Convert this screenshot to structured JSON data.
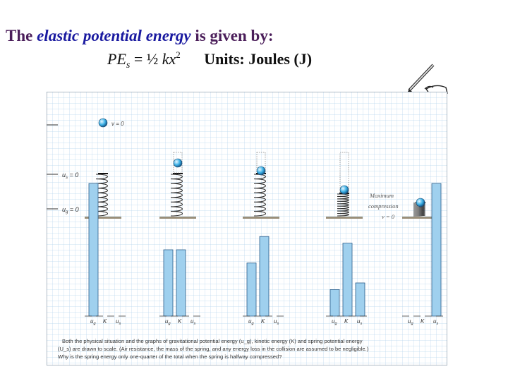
{
  "heading": {
    "prefix": "The ",
    "emphasis": "elastic potential energy",
    "suffix": " is given by:"
  },
  "formula": {
    "lhs": "PE",
    "lhs_sub": "s",
    "equals": " = ½ ",
    "rhs": "kx",
    "rhs_sup": "2",
    "units": "Units: Joules (J)"
  },
  "figure": {
    "label_v0": "v = 0",
    "label_us0": "u",
    "label_us0_sub": "s",
    "label_us0_eq": " = 0",
    "label_ug0": "u",
    "label_ug0_sub": "g",
    "label_ug0_eq": " = 0",
    "max_compression_1": "Maximum",
    "max_compression_2": "compression",
    "max_compression_3": "v = 0",
    "bar_labels": [
      "u",
      "K",
      "u"
    ],
    "bar_label_subs": [
      "g",
      "",
      "s"
    ],
    "caption_1": "Both the physical situation and the graphs of gravitational potential energy (u_g), kinetic energy (K) and spring potential energy",
    "caption_2": "(U_s) are drawn to scale. (Air resistance, the mass of the spring, and any energy loss in the collision are assumed to be negligible.)",
    "caption_3": "Why is the spring energy only one-quarter of the total when the spring is halfway compressed?"
  },
  "colors": {
    "bar_fill": "#9fd0ee",
    "bar_stroke": "#2b5d8a",
    "grid": "#a8cde8",
    "heading": "#4b1e5a",
    "emphasis": "#1a1aa0"
  },
  "icons": [
    "pencil-hand-icon"
  ]
}
